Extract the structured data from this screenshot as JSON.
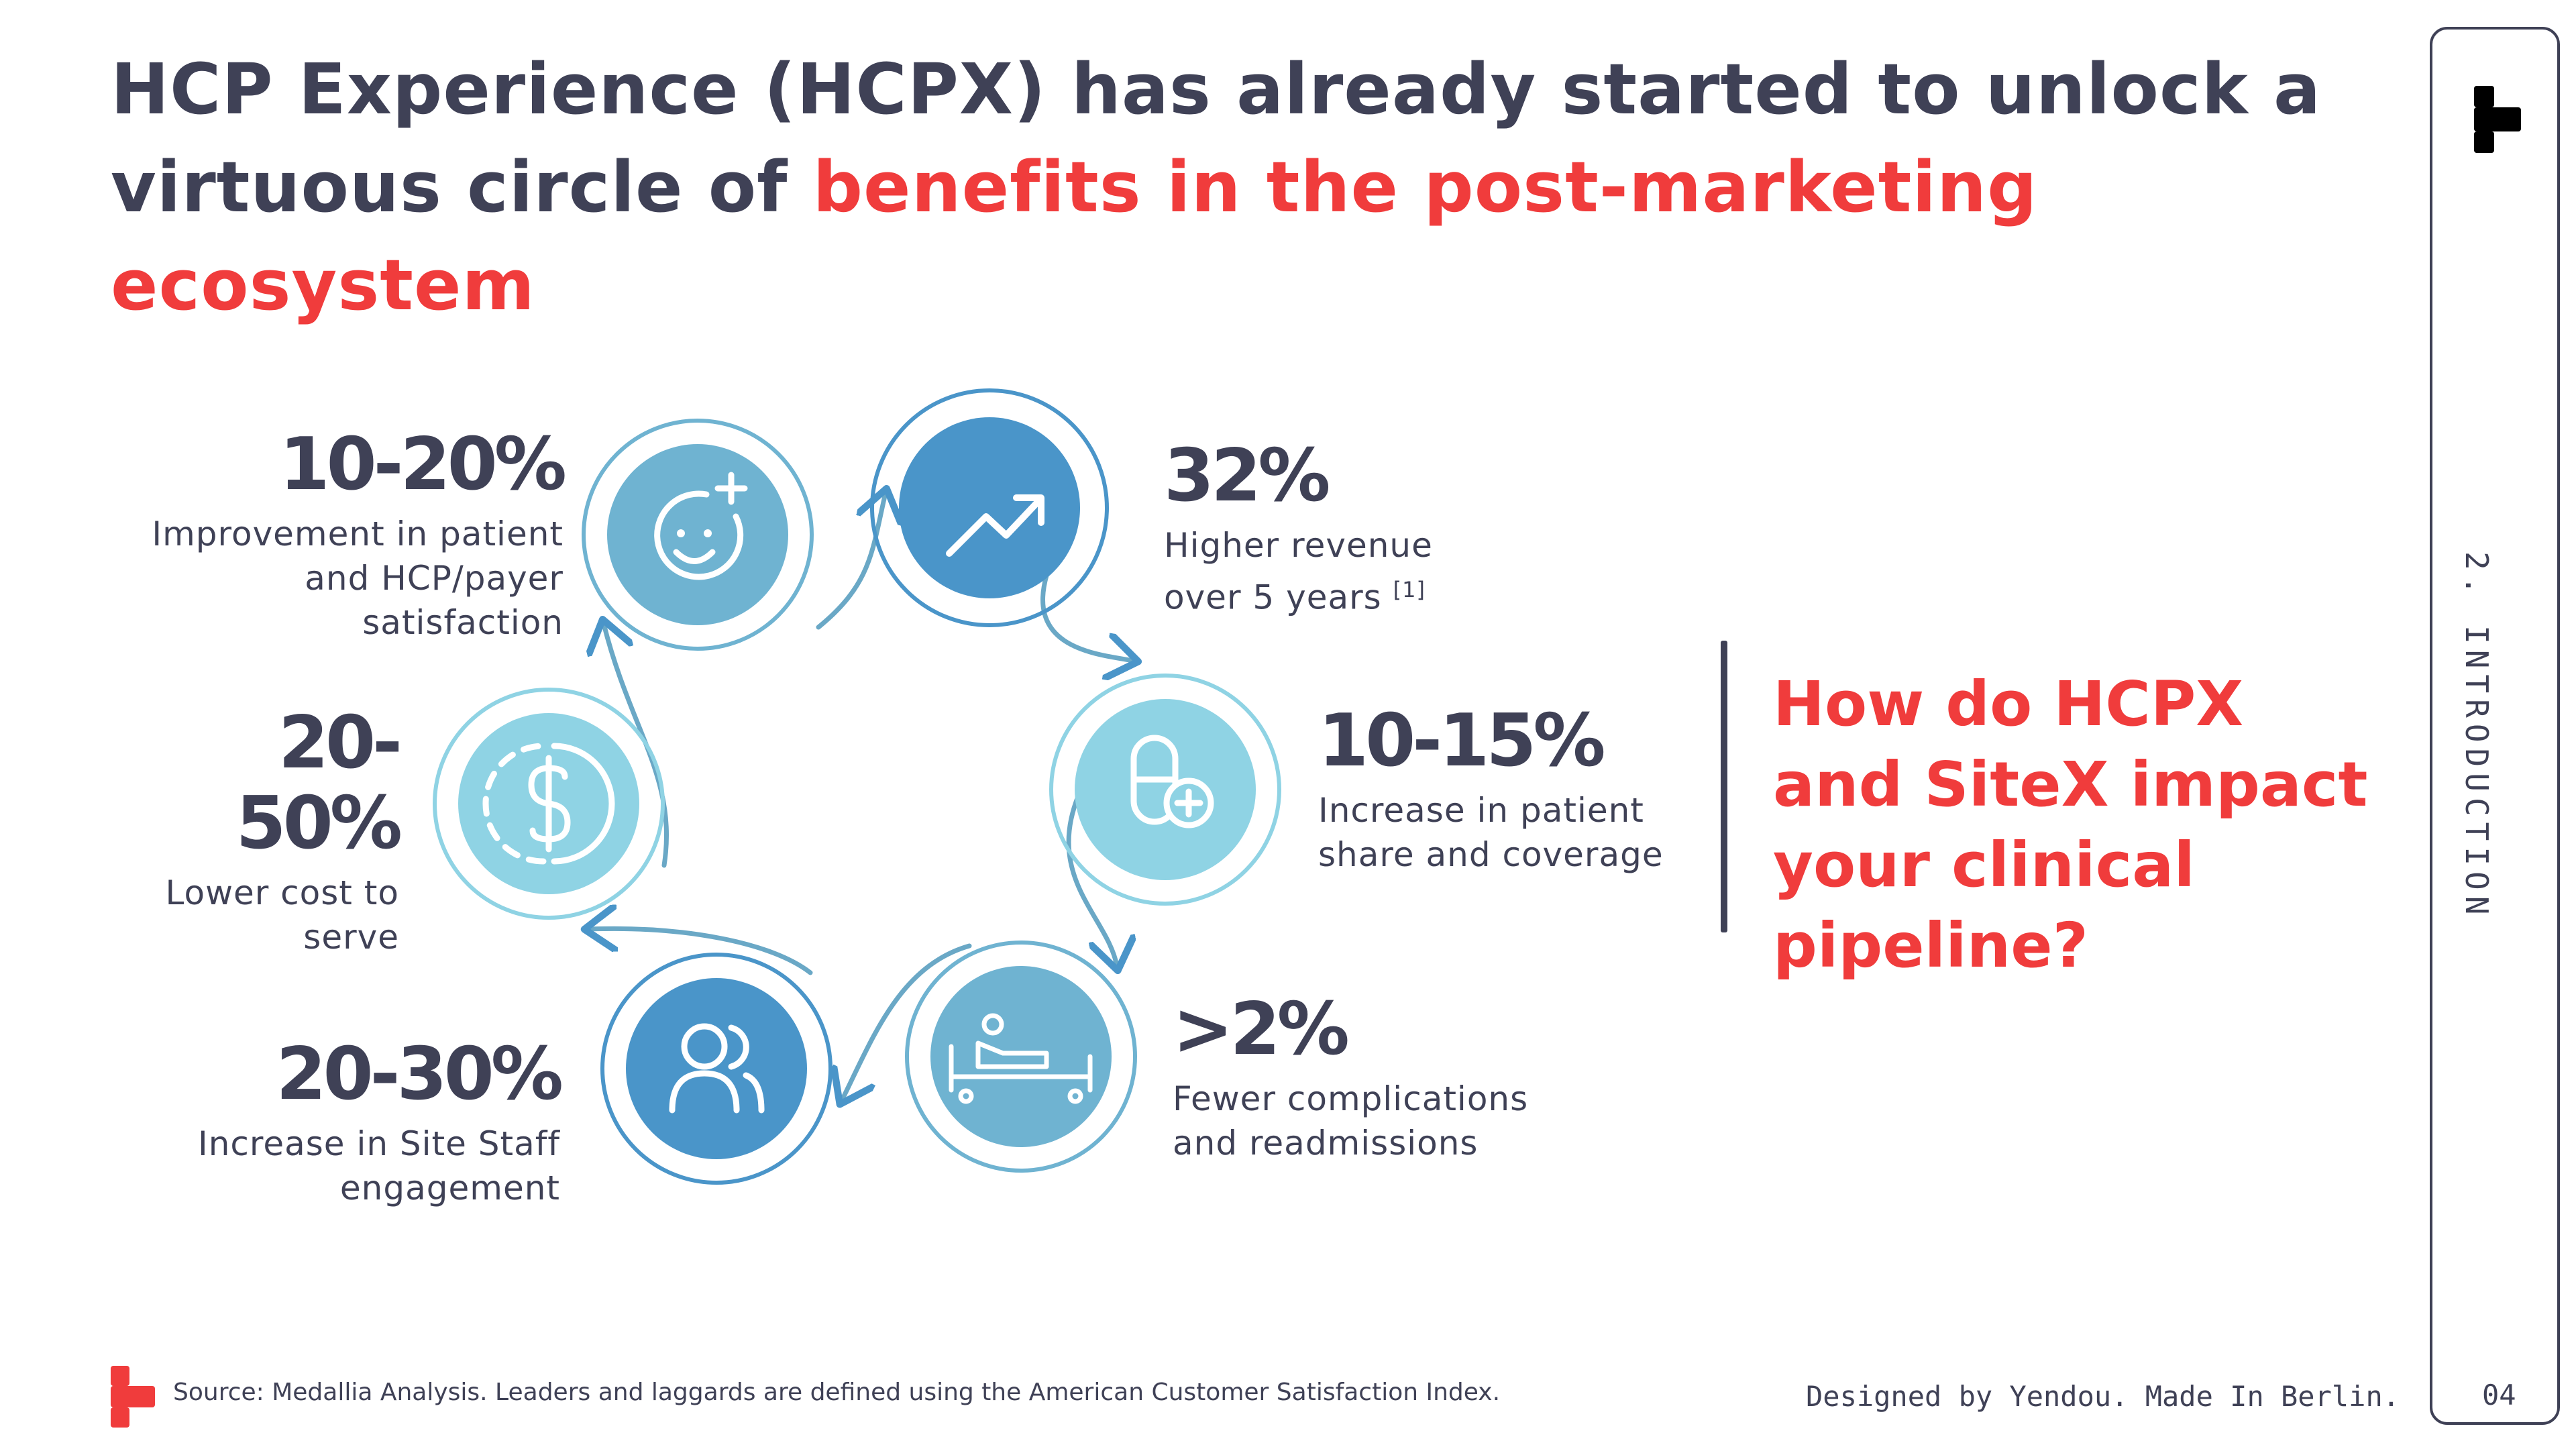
{
  "title": {
    "lead": "HCP Experience (HCPX) has already started to unlock a virtuous circle of ",
    "accent": "benefits in the post-marketing ecosystem"
  },
  "question": "How do HCPX and SiteX impact your clinical pipeline?",
  "stats": [
    {
      "value": "10-20%",
      "label": "Improvement in patient and HCP/payer satisfaction",
      "icon": "smiley-plus-icon",
      "color": "#6fb3d1"
    },
    {
      "value": "32%",
      "label": "Higher revenue over 5 years",
      "footnote": "[1]",
      "icon": "trending-up-icon",
      "color": "#4a95c9"
    },
    {
      "value": "10-15%",
      "label": "Increase in patient share and coverage",
      "icon": "pill-plus-icon",
      "color": "#8fd3e4"
    },
    {
      "value": ">2%",
      "label": "Fewer complications and readmissions",
      "icon": "hospital-bed-icon",
      "color": "#6fb3d1"
    },
    {
      "value": "20-30%",
      "label": "Increase in Site Staff engagement",
      "icon": "people-icon",
      "color": "#4a95c9"
    },
    {
      "value": "20-50%",
      "label": "Lower cost to serve",
      "icon": "dollar-circle-icon",
      "color": "#8fd3e4"
    }
  ],
  "section_label": "2. INTRODUCTION",
  "page_number": "04",
  "credits": "Designed by Yendou. Made In Berlin.",
  "source": "Source: Medallia Analysis. Leaders and laggards are defined using the American Customer Satisfaction Index.",
  "colors": {
    "accent": "#f03c3c",
    "text": "#3f4156",
    "logo_black": "#000000"
  }
}
